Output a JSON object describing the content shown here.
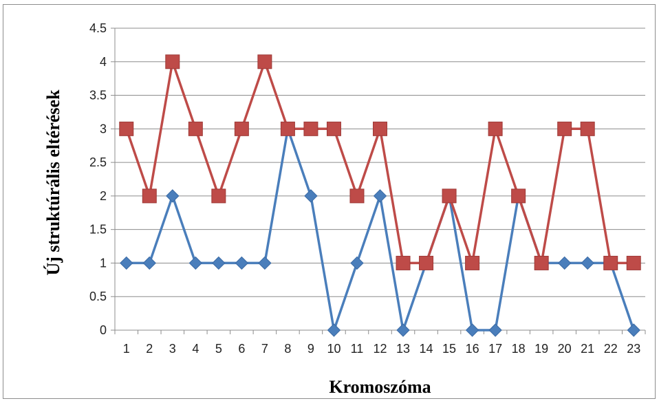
{
  "chart_data": {
    "type": "line",
    "title": "",
    "xlabel": "Kromoszóma",
    "ylabel": "Új struktúrális eltérések",
    "categories": [
      "1",
      "2",
      "3",
      "4",
      "5",
      "6",
      "7",
      "8",
      "9",
      "10",
      "11",
      "12",
      "13",
      "14",
      "15",
      "16",
      "17",
      "18",
      "19",
      "20",
      "21",
      "22",
      "23"
    ],
    "ylim": [
      0,
      4.5
    ],
    "yticks": [
      "0",
      "0.5",
      "1",
      "1.5",
      "2",
      "2.5",
      "3",
      "3.5",
      "4",
      "4.5"
    ],
    "grid": true,
    "legend": "none",
    "series": [
      {
        "color": "#4a7ebb",
        "marker": "diamond",
        "values": [
          1,
          1,
          2,
          1,
          1,
          1,
          1,
          3,
          2,
          0,
          1,
          2,
          0,
          1,
          2,
          0,
          0,
          2,
          1,
          1,
          1,
          1,
          0
        ]
      },
      {
        "color": "#be4b48",
        "marker": "square",
        "values": [
          3,
          2,
          4,
          3,
          2,
          3,
          4,
          3,
          3,
          3,
          2,
          3,
          1,
          1,
          2,
          1,
          3,
          2,
          1,
          3,
          3,
          1,
          1
        ]
      }
    ]
  }
}
